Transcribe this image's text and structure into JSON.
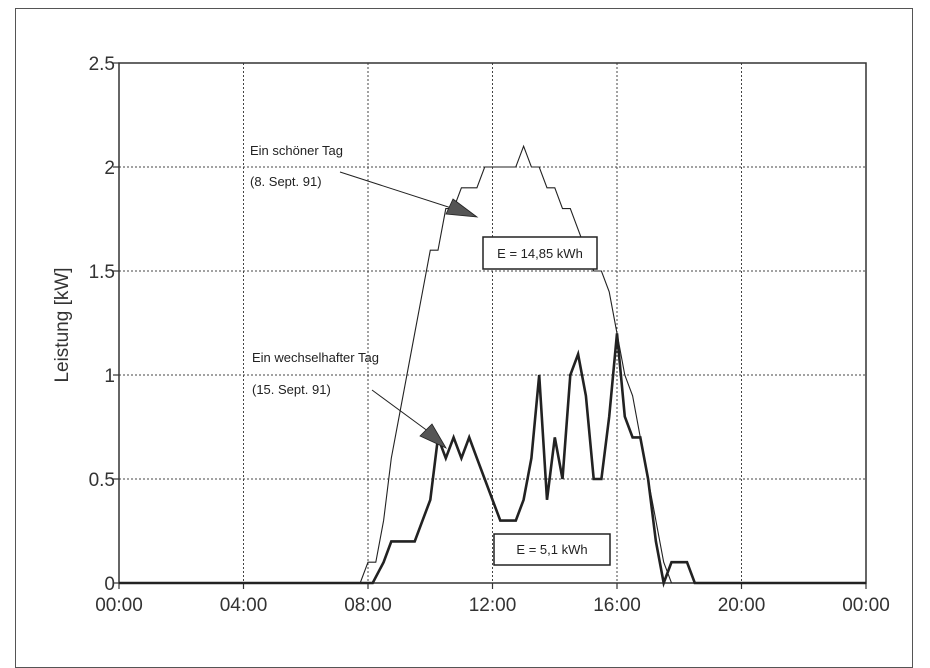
{
  "chart_data": {
    "type": "line",
    "ylabel": "Leistung [kW]",
    "xlabel": "",
    "title": "",
    "xlim": [
      0,
      24
    ],
    "ylim": [
      0,
      2.5
    ],
    "x_tick_labels": [
      "00:00",
      "04:00",
      "08:00",
      "12:00",
      "16:00",
      "20:00",
      "00:00"
    ],
    "x_tick_hours": [
      0,
      4,
      8,
      12,
      16,
      20,
      24
    ],
    "y_ticks": [
      0,
      0.5,
      1,
      1.5,
      2,
      2.5
    ],
    "y_tick_labels": [
      "0",
      "0.5",
      "1",
      "1.5",
      "2",
      "2.5"
    ],
    "grid": true,
    "series": [
      {
        "name": "",
        "style": "thin",
        "x": [
          0,
          7.75,
          8.0,
          8.25,
          8.5,
          8.75,
          9.0,
          9.25,
          9.5,
          9.75,
          10.0,
          10.25,
          10.5,
          10.75,
          11.0,
          11.25,
          11.5,
          11.75,
          12.0,
          12.25,
          12.5,
          12.75,
          13.0,
          13.25,
          13.5,
          13.75,
          14.0,
          14.25,
          14.5,
          14.75,
          15.0,
          15.25,
          15.5,
          15.75,
          16.0,
          16.25,
          16.5,
          16.75,
          17.0,
          17.25,
          17.5,
          17.75,
          18.0,
          18.25,
          18.5,
          18.75,
          19.0,
          24
        ],
        "y": [
          0,
          0,
          0.1,
          0.1,
          0.3,
          0.6,
          0.8,
          1.0,
          1.2,
          1.4,
          1.6,
          1.6,
          1.8,
          1.8,
          1.9,
          1.9,
          1.9,
          2.0,
          2.0,
          2.0,
          2.0,
          2.0,
          2.1,
          2.0,
          2.0,
          1.9,
          1.9,
          1.8,
          1.8,
          1.7,
          1.6,
          1.5,
          1.5,
          1.4,
          1.2,
          1.0,
          0.9,
          0.7,
          0.5,
          0.3,
          0.1,
          0,
          0,
          0,
          0,
          0,
          0,
          0
        ]
      },
      {
        "name": "",
        "style": "thick",
        "x": [
          0,
          8.15,
          8.5,
          8.75,
          9.0,
          9.25,
          9.5,
          9.75,
          10.0,
          10.25,
          10.5,
          10.75,
          11.0,
          11.25,
          11.5,
          11.75,
          12.0,
          12.25,
          12.5,
          12.75,
          13.0,
          13.25,
          13.5,
          13.75,
          14.0,
          14.25,
          14.5,
          14.75,
          15.0,
          15.25,
          15.5,
          15.75,
          16.0,
          16.25,
          16.5,
          16.75,
          17.0,
          17.25,
          17.5,
          17.75,
          18.0,
          18.25,
          18.5,
          18.75,
          19.0,
          24
        ],
        "y": [
          0,
          0,
          0.1,
          0.2,
          0.2,
          0.2,
          0.2,
          0.3,
          0.4,
          0.7,
          0.6,
          0.7,
          0.6,
          0.7,
          0.6,
          0.5,
          0.4,
          0.3,
          0.3,
          0.3,
          0.4,
          0.6,
          1.0,
          0.4,
          0.7,
          0.5,
          1.0,
          1.1,
          0.9,
          0.5,
          0.5,
          0.8,
          1.2,
          0.8,
          0.7,
          0.7,
          0.5,
          0.2,
          0.0,
          0.1,
          0.1,
          0.1,
          0,
          0,
          0,
          0
        ]
      }
    ],
    "annotations": {
      "good_day_title": "Ein schöner Tag",
      "good_day_date": "(8. Sept. 91)",
      "good_day_energy": "E = 14,85 kWh",
      "variable_day_title": "Ein wechselhafter Tag",
      "variable_day_date": "(15. Sept. 91)",
      "variable_day_energy": "E = 5,1 kWh"
    }
  }
}
